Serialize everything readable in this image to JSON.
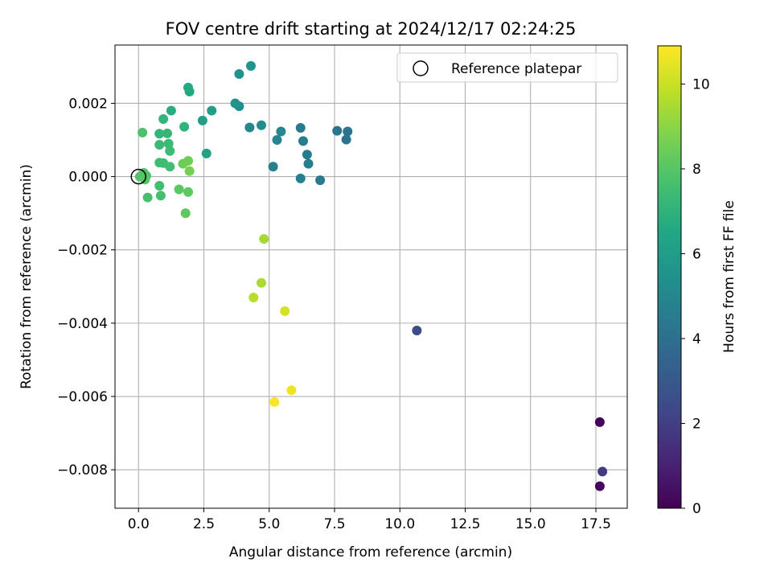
{
  "chart_data": {
    "type": "scatter",
    "title": "FOV centre drift starting at 2024/12/17 02:24:25",
    "xlabel": "Angular distance from reference (arcmin)",
    "ylabel": "Rotation from reference (arcmin)",
    "xlim": [
      -0.9,
      18.7
    ],
    "ylim": [
      -0.00905,
      0.00359
    ],
    "x_ticks": [
      0.0,
      2.5,
      5.0,
      7.5,
      10.0,
      12.5,
      15.0,
      17.5
    ],
    "x_tick_labels": [
      "0.0",
      "2.5",
      "5.0",
      "7.5",
      "10.0",
      "12.5",
      "15.0",
      "17.5"
    ],
    "y_ticks": [
      0.002,
      0.0,
      -0.002,
      -0.004,
      -0.006,
      -0.008
    ],
    "y_tick_labels": [
      "0.002",
      "0.000",
      "−0.002",
      "−0.004",
      "−0.006",
      "−0.008"
    ],
    "grid": true,
    "legend": {
      "position": "upper-right",
      "entries": [
        "Reference platepar"
      ]
    },
    "colorbar": {
      "label": "Hours from first FF file",
      "colormap": "viridis",
      "range": [
        0,
        10.9
      ],
      "ticks": [
        0,
        2,
        4,
        6,
        8,
        10
      ],
      "tick_labels": [
        "0",
        "2",
        "4",
        "6",
        "8",
        "10"
      ]
    },
    "reference_point": {
      "x": 0.0,
      "y": 0.0
    },
    "points": [
      {
        "x": 17.65,
        "y": -0.0067,
        "hours": 0.1
      },
      {
        "x": 17.65,
        "y": -0.00845,
        "hours": 0.25
      },
      {
        "x": 17.75,
        "y": -0.00805,
        "hours": 1.9
      },
      {
        "x": 10.65,
        "y": -0.0042,
        "hours": 2.5
      },
      {
        "x": 8.0,
        "y": 0.00123,
        "hours": 4.1
      },
      {
        "x": 7.95,
        "y": 0.00101,
        "hours": 4.15
      },
      {
        "x": 7.6,
        "y": 0.00125,
        "hours": 4.2
      },
      {
        "x": 6.95,
        "y": -0.0001,
        "hours": 4.4
      },
      {
        "x": 6.2,
        "y": 0.00133,
        "hours": 4.45
      },
      {
        "x": 6.3,
        "y": 0.00097,
        "hours": 4.5
      },
      {
        "x": 6.45,
        "y": 0.0006,
        "hours": 4.55
      },
      {
        "x": 6.5,
        "y": 0.00035,
        "hours": 4.6
      },
      {
        "x": 6.2,
        "y": -5e-05,
        "hours": 4.65
      },
      {
        "x": 5.15,
        "y": 0.00027,
        "hours": 4.75
      },
      {
        "x": 5.3,
        "y": 0.001,
        "hours": 5.0
      },
      {
        "x": 5.45,
        "y": 0.00123,
        "hours": 5.05
      },
      {
        "x": 4.25,
        "y": 0.00134,
        "hours": 5.1
      },
      {
        "x": 4.7,
        "y": 0.0014,
        "hours": 5.3
      },
      {
        "x": 3.85,
        "y": 0.00192,
        "hours": 5.4
      },
      {
        "x": 3.7,
        "y": 0.002,
        "hours": 5.5
      },
      {
        "x": 3.85,
        "y": 0.0028,
        "hours": 5.55
      },
      {
        "x": 4.3,
        "y": 0.00302,
        "hours": 5.6
      },
      {
        "x": 2.8,
        "y": 0.0018,
        "hours": 6.0
      },
      {
        "x": 2.45,
        "y": 0.00153,
        "hours": 6.1
      },
      {
        "x": 2.6,
        "y": 0.00063,
        "hours": 6.2
      },
      {
        "x": 1.95,
        "y": 0.00232,
        "hours": 6.5
      },
      {
        "x": 1.9,
        "y": 0.00243,
        "hours": 6.6
      },
      {
        "x": 1.25,
        "y": 0.0018,
        "hours": 6.8
      },
      {
        "x": 1.75,
        "y": 0.00136,
        "hours": 7.0
      },
      {
        "x": 0.95,
        "y": 0.00157,
        "hours": 7.1
      },
      {
        "x": 0.8,
        "y": 0.00117,
        "hours": 7.15
      },
      {
        "x": 1.1,
        "y": 0.00118,
        "hours": 7.2
      },
      {
        "x": 0.8,
        "y": 0.00087,
        "hours": 7.3
      },
      {
        "x": 1.15,
        "y": 0.0009,
        "hours": 7.35
      },
      {
        "x": 1.2,
        "y": 0.0007,
        "hours": 7.4
      },
      {
        "x": 0.8,
        "y": 0.00038,
        "hours": 7.45
      },
      {
        "x": 0.95,
        "y": 0.00037,
        "hours": 7.5
      },
      {
        "x": 1.2,
        "y": 0.00027,
        "hours": 7.55
      },
      {
        "x": 0.8,
        "y": -0.00025,
        "hours": 7.6
      },
      {
        "x": 0.85,
        "y": -0.00052,
        "hours": 7.65
      },
      {
        "x": 0.35,
        "y": -0.00057,
        "hours": 7.7
      },
      {
        "x": 0.15,
        "y": 0.0012,
        "hours": 7.75
      },
      {
        "x": 0.2,
        "y": 0.0001,
        "hours": 7.8
      },
      {
        "x": 0.3,
        "y": 2e-05,
        "hours": 7.85
      },
      {
        "x": 0.05,
        "y": 0.0,
        "hours": 7.9
      },
      {
        "x": 0.15,
        "y": 3e-05,
        "hours": 7.95
      },
      {
        "x": 0.25,
        "y": -8e-05,
        "hours": 8.0
      },
      {
        "x": 1.55,
        "y": -0.00035,
        "hours": 8.1
      },
      {
        "x": 1.9,
        "y": -0.00042,
        "hours": 8.15
      },
      {
        "x": 1.8,
        "y": -0.001,
        "hours": 8.2
      },
      {
        "x": 1.7,
        "y": 0.00035,
        "hours": 8.4
      },
      {
        "x": 1.9,
        "y": 0.00043,
        "hours": 8.5
      },
      {
        "x": 1.95,
        "y": 0.00015,
        "hours": 8.6
      },
      {
        "x": 4.8,
        "y": -0.0017,
        "hours": 9.4
      },
      {
        "x": 4.7,
        "y": -0.0029,
        "hours": 9.5
      },
      {
        "x": 4.4,
        "y": -0.0033,
        "hours": 9.7
      },
      {
        "x": 5.6,
        "y": -0.00367,
        "hours": 10.2
      },
      {
        "x": 5.85,
        "y": -0.00583,
        "hours": 10.6
      },
      {
        "x": 5.2,
        "y": -0.00615,
        "hours": 10.8
      }
    ]
  }
}
